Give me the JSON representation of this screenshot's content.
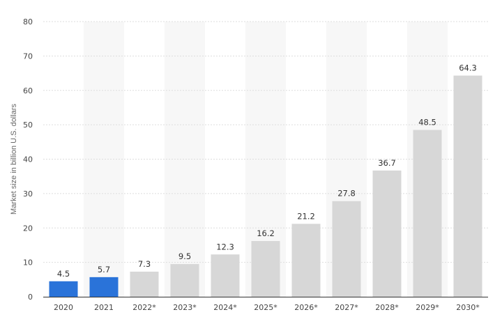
{
  "chart_data": {
    "type": "bar",
    "title": "",
    "xlabel": "",
    "ylabel": "Market size in billion U.S. dollars",
    "ylim": [
      0,
      80
    ],
    "yticks": [
      0,
      10,
      20,
      30,
      40,
      50,
      60,
      70,
      80
    ],
    "categories": [
      "2020",
      "2021",
      "2022*",
      "2023*",
      "2024*",
      "2025*",
      "2026*",
      "2027*",
      "2028*",
      "2029*",
      "2030*"
    ],
    "values": [
      4.5,
      5.7,
      7.3,
      9.5,
      12.3,
      16.2,
      21.2,
      27.8,
      36.7,
      48.5,
      64.3
    ],
    "value_labels": [
      "4.5",
      "5.7",
      "7.3",
      "9.5",
      "12.3",
      "16.2",
      "21.2",
      "27.8",
      "36.7",
      "48.5",
      "64.3"
    ],
    "grid": true,
    "colors": {
      "actual": "#2a73d9",
      "forecast": "#d7d7d7",
      "band": "#f7f7f7",
      "grid": "#dddddd",
      "axis": "#333333"
    },
    "actual_categories": [
      "2020",
      "2021"
    ]
  }
}
